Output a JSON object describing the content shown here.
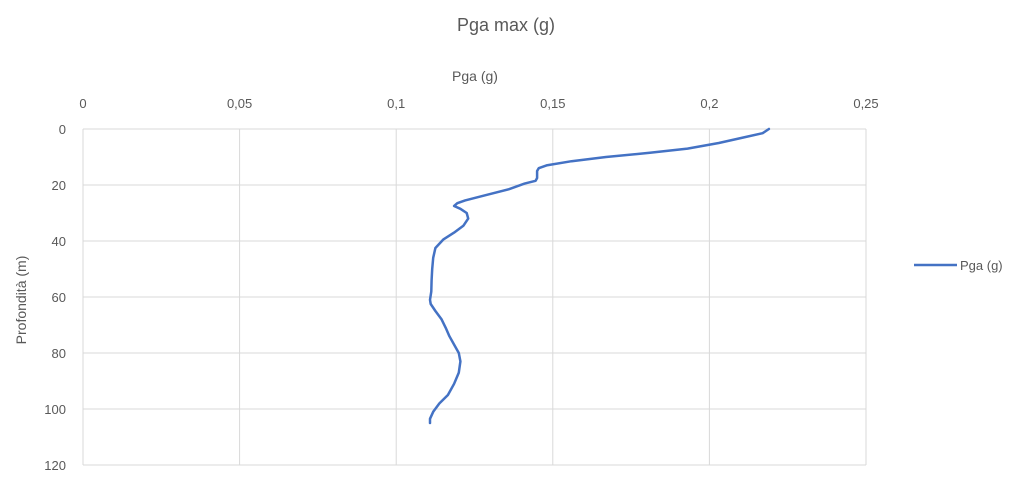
{
  "chart_data": {
    "type": "line",
    "title": "Pga max (g)",
    "xlabel": "Pga (g)",
    "ylabel": "Profondità (m)",
    "x_axis_position": "top",
    "y_axis_inverted": true,
    "xlim": [
      0,
      0.25
    ],
    "ylim": [
      0,
      120
    ],
    "x_ticks": [
      "0",
      "0,05",
      "0,1",
      "0,15",
      "0,2",
      "0,25"
    ],
    "y_ticks": [
      "0",
      "20",
      "40",
      "60",
      "80",
      "100",
      "120"
    ],
    "grid": true,
    "legend_position": "right",
    "series": [
      {
        "name": "Pga (g)",
        "color": "#4472c4",
        "points": [
          [
            0.219,
            0
          ],
          [
            0.217,
            1.5
          ],
          [
            0.211,
            3
          ],
          [
            0.203,
            5
          ],
          [
            0.193,
            7
          ],
          [
            0.181,
            8.5
          ],
          [
            0.167,
            10
          ],
          [
            0.156,
            11.5
          ],
          [
            0.148,
            13
          ],
          [
            0.1455,
            14
          ],
          [
            0.145,
            15
          ],
          [
            0.145,
            17.5
          ],
          [
            0.1445,
            18.5
          ],
          [
            0.141,
            19.5
          ],
          [
            0.136,
            21.5
          ],
          [
            0.129,
            23.5
          ],
          [
            0.122,
            25.5
          ],
          [
            0.1195,
            26.5
          ],
          [
            0.1185,
            27.5
          ],
          [
            0.1205,
            28.5
          ],
          [
            0.1225,
            30
          ],
          [
            0.123,
            32
          ],
          [
            0.1215,
            34.5
          ],
          [
            0.1185,
            37
          ],
          [
            0.115,
            39.5
          ],
          [
            0.1125,
            42.5
          ],
          [
            0.1118,
            46
          ],
          [
            0.1115,
            50
          ],
          [
            0.1113,
            54
          ],
          [
            0.1112,
            58
          ],
          [
            0.1108,
            61
          ],
          [
            0.111,
            62.5
          ],
          [
            0.1125,
            65
          ],
          [
            0.1145,
            68
          ],
          [
            0.1158,
            71
          ],
          [
            0.117,
            74
          ],
          [
            0.1185,
            77
          ],
          [
            0.12,
            80
          ],
          [
            0.1205,
            83
          ],
          [
            0.12,
            87
          ],
          [
            0.1185,
            91
          ],
          [
            0.1165,
            95
          ],
          [
            0.1138,
            98
          ],
          [
            0.1118,
            101
          ],
          [
            0.1108,
            103.5
          ],
          [
            0.1108,
            105
          ]
        ]
      }
    ]
  }
}
